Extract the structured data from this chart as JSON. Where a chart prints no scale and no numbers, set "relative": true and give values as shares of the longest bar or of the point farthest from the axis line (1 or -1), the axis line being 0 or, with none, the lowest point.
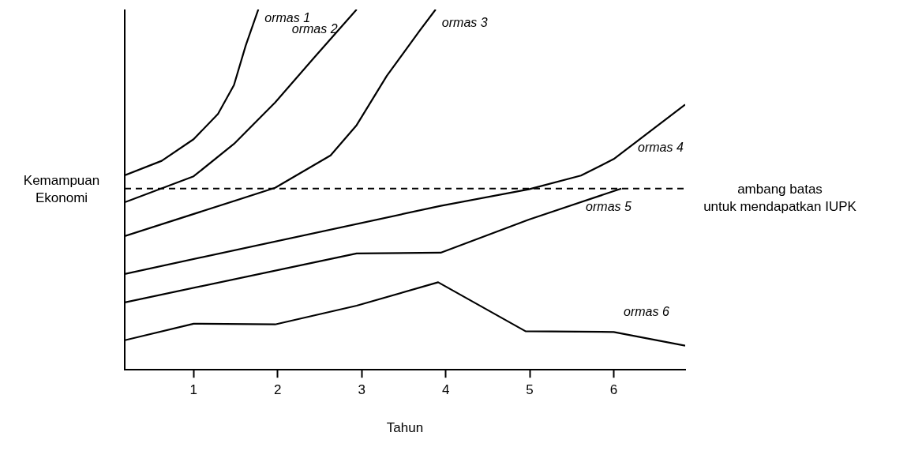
{
  "chart_data": {
    "type": "line",
    "relative": true,
    "xlabel": "Tahun",
    "ylabel": "Kemampuan\nEkonomi",
    "xlim": [
      0.18,
      6.85
    ],
    "xticks": [
      1,
      2,
      3,
      4,
      5,
      6
    ],
    "tick_labels": "x",
    "grid": false,
    "legend": false,
    "marker": "none",
    "line_style": "solid",
    "series": [
      {
        "name": "ormas 1",
        "color": "#000000",
        "x": [
          0.18,
          0.62,
          1.0,
          1.29,
          1.48,
          1.62,
          1.77
        ],
        "values": [
          0.54,
          0.58,
          0.64,
          0.71,
          0.79,
          0.9,
          1.0
        ]
      },
      {
        "name": "ormas 2",
        "color": "#000000",
        "x": [
          0.18,
          1.0,
          1.48,
          1.97,
          2.44,
          2.94
        ],
        "values": [
          0.465,
          0.537,
          0.627,
          0.742,
          0.868,
          1.0
        ]
      },
      {
        "name": "ormas 3",
        "color": "#000000",
        "x": [
          0.18,
          1.97,
          2.63,
          2.94,
          3.3,
          3.69,
          3.88
        ],
        "values": [
          0.371,
          0.505,
          0.595,
          0.679,
          0.816,
          0.941,
          1.0
        ]
      },
      {
        "name": "ormas 4",
        "color": "#000000",
        "x": [
          0.18,
          3.94,
          4.99,
          5.61,
          6.0,
          6.85
        ],
        "values": [
          0.266,
          0.455,
          0.501,
          0.539,
          0.585,
          0.736
        ]
      },
      {
        "name": "ormas 5",
        "color": "#000000",
        "x": [
          0.18,
          2.94,
          3.94,
          4.99,
          6.09
        ],
        "values": [
          0.187,
          0.323,
          0.325,
          0.417,
          0.503
        ]
      },
      {
        "name": "ormas 6",
        "color": "#000000",
        "x": [
          0.18,
          1.0,
          1.97,
          2.94,
          3.91,
          4.95,
          6.0,
          6.85
        ],
        "values": [
          0.082,
          0.128,
          0.126,
          0.178,
          0.243,
          0.107,
          0.105,
          0.067
        ]
      }
    ],
    "ref_lines": [
      {
        "axis": "y",
        "value": 0.503,
        "label": "ambang batas\nuntuk mendapatkan IUPK",
        "color": "#000000",
        "line_style": "dashed"
      }
    ]
  }
}
